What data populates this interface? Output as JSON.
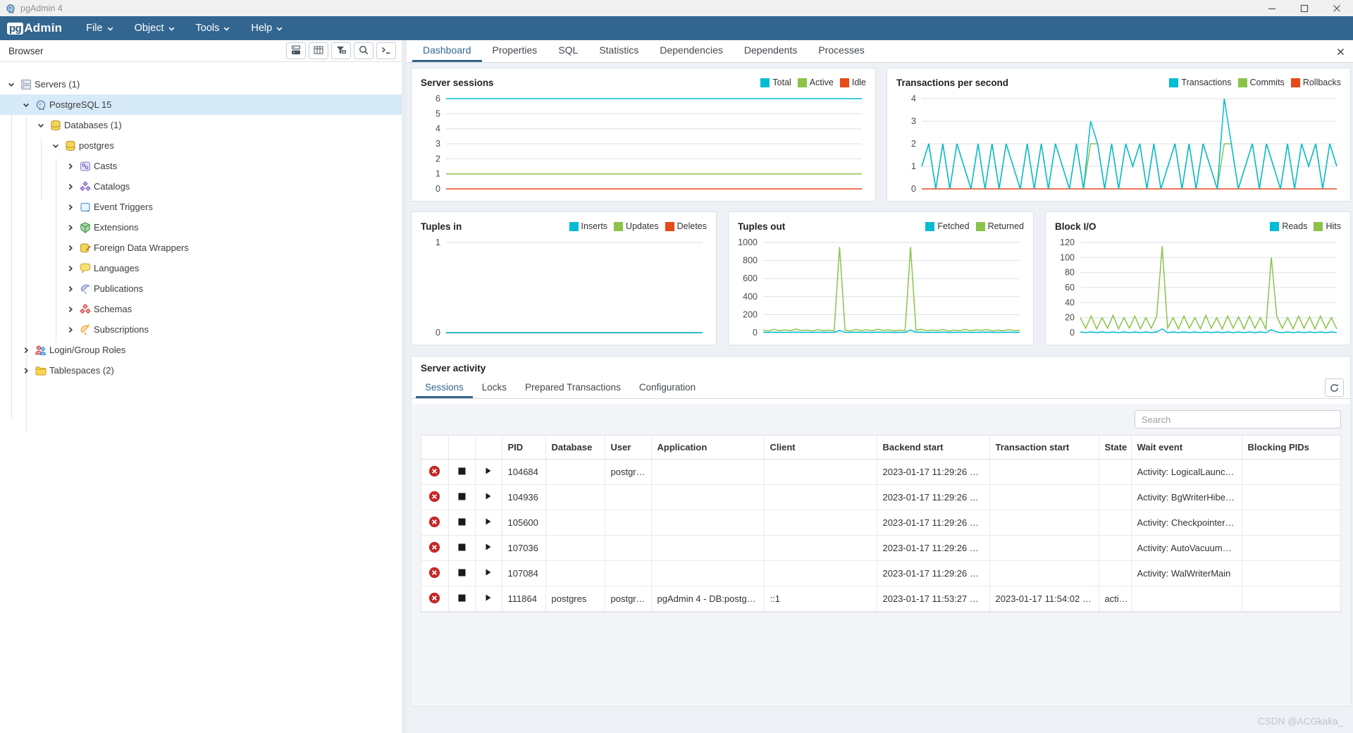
{
  "window": {
    "title": "pgAdmin 4",
    "controls": [
      "minimize-icon",
      "maximize-icon",
      "close-icon"
    ]
  },
  "menubar": {
    "logo_pg": "pg",
    "logo_admin": "Admin",
    "items": [
      {
        "label": "File"
      },
      {
        "label": "Object"
      },
      {
        "label": "Tools"
      },
      {
        "label": "Help"
      }
    ]
  },
  "browser": {
    "title": "Browser",
    "toolbar": [
      "object-explorer-icon",
      "grid-icon",
      "filter-icon",
      "search-icon",
      "console-icon"
    ],
    "tree": [
      {
        "label": "Servers (1)",
        "depth": 0,
        "state": "expanded",
        "icon": "servers-icon",
        "selected": false
      },
      {
        "label": "PostgreSQL 15",
        "depth": 1,
        "state": "expanded",
        "icon": "postgresql-icon",
        "selected": true
      },
      {
        "label": "Databases (1)",
        "depth": 2,
        "state": "expanded",
        "icon": "databases-icon",
        "selected": false
      },
      {
        "label": "postgres",
        "depth": 3,
        "state": "expanded",
        "icon": "database-icon",
        "selected": false
      },
      {
        "label": "Casts",
        "depth": 4,
        "state": "collapsed",
        "icon": "casts-icon",
        "selected": false
      },
      {
        "label": "Catalogs",
        "depth": 4,
        "state": "collapsed",
        "icon": "catalogs-icon",
        "selected": false
      },
      {
        "label": "Event Triggers",
        "depth": 4,
        "state": "collapsed",
        "icon": "event-triggers-icon",
        "selected": false
      },
      {
        "label": "Extensions",
        "depth": 4,
        "state": "collapsed",
        "icon": "extensions-icon",
        "selected": false
      },
      {
        "label": "Foreign Data Wrappers",
        "depth": 4,
        "state": "collapsed",
        "icon": "fdw-icon",
        "selected": false
      },
      {
        "label": "Languages",
        "depth": 4,
        "state": "collapsed",
        "icon": "languages-icon",
        "selected": false
      },
      {
        "label": "Publications",
        "depth": 4,
        "state": "collapsed",
        "icon": "publications-icon",
        "selected": false
      },
      {
        "label": "Schemas",
        "depth": 4,
        "state": "collapsed",
        "icon": "schemas-icon",
        "selected": false
      },
      {
        "label": "Subscriptions",
        "depth": 4,
        "state": "collapsed",
        "icon": "subscriptions-icon",
        "selected": false
      },
      {
        "label": "Login/Group Roles",
        "depth": 1,
        "state": "collapsed",
        "icon": "roles-icon",
        "selected": false
      },
      {
        "label": "Tablespaces (2)",
        "depth": 1,
        "state": "collapsed",
        "icon": "tablespaces-icon",
        "selected": false
      }
    ]
  },
  "tabs": {
    "items": [
      "Dashboard",
      "Properties",
      "SQL",
      "Statistics",
      "Dependencies",
      "Dependents",
      "Processes"
    ],
    "active": "Dashboard"
  },
  "colors": {
    "accent": "#326690",
    "teal": "#00BCD4",
    "green": "#8BC34A",
    "red": "#E64A19",
    "selection": "#d6eaf8"
  },
  "chart_data": [
    {
      "id": "server-sessions",
      "type": "line",
      "title": "Server sessions",
      "legend": [
        {
          "label": "Total",
          "color": "#00BCD4"
        },
        {
          "label": "Active",
          "color": "#8BC34A"
        },
        {
          "label": "Idle",
          "color": "#E64A19"
        }
      ],
      "yticks": [
        6,
        5,
        4,
        3,
        2,
        1,
        0
      ],
      "ymax": 6,
      "ylim": [
        0,
        6
      ],
      "grid": true,
      "legend_position": "top-right",
      "series": [
        {
          "name": "Idle",
          "color": "#E64A19",
          "values": [
            0,
            0
          ]
        },
        {
          "name": "Active",
          "color": "#8BC34A",
          "values": [
            1,
            1
          ]
        },
        {
          "name": "Total",
          "color": "#00BCD4",
          "values": [
            6,
            6
          ]
        }
      ]
    },
    {
      "id": "tps",
      "type": "line",
      "title": "Transactions per second",
      "legend": [
        {
          "label": "Transactions",
          "color": "#00BCD4"
        },
        {
          "label": "Commits",
          "color": "#8BC34A"
        },
        {
          "label": "Rollbacks",
          "color": "#E64A19"
        }
      ],
      "yticks": [
        4,
        3,
        2,
        1,
        0
      ],
      "ymax": 4,
      "ylim": [
        0,
        4
      ],
      "grid": true,
      "legend_position": "top-right",
      "series": [
        {
          "name": "Rollbacks",
          "color": "#E64A19",
          "values": [
            0,
            0
          ]
        },
        {
          "name": "Commits",
          "color": "#8BC34A",
          "values": [
            1,
            2,
            0,
            2,
            0,
            2,
            1,
            0,
            2,
            0,
            2,
            0,
            2,
            1,
            0,
            2,
            0,
            2,
            0,
            2,
            1,
            0,
            2,
            0,
            2,
            2,
            0,
            2,
            0,
            2,
            1,
            2,
            0,
            2,
            0,
            1,
            2,
            0,
            2,
            0,
            2,
            1,
            0,
            2,
            2,
            0,
            1,
            2,
            0,
            2,
            1,
            0,
            2,
            0,
            2,
            1,
            2,
            0,
            2,
            1
          ]
        },
        {
          "name": "Transactions",
          "color": "#00BCD4",
          "values": [
            1,
            2,
            0,
            2,
            0,
            2,
            1,
            0,
            2,
            0,
            2,
            0,
            2,
            1,
            0,
            2,
            0,
            2,
            0,
            2,
            1,
            0,
            2,
            0,
            3,
            2,
            0,
            2,
            0,
            2,
            1,
            2,
            0,
            2,
            0,
            1,
            2,
            0,
            2,
            0,
            2,
            1,
            0,
            4,
            2,
            0,
            1,
            2,
            0,
            2,
            1,
            0,
            2,
            0,
            2,
            1,
            2,
            0,
            2,
            1
          ]
        }
      ]
    },
    {
      "id": "tuples-in",
      "type": "line",
      "title": "Tuples in",
      "legend": [
        {
          "label": "Inserts",
          "color": "#00BCD4"
        },
        {
          "label": "Updates",
          "color": "#8BC34A"
        },
        {
          "label": "Deletes",
          "color": "#E64A19"
        }
      ],
      "yticks": [
        1,
        0
      ],
      "ymax": 1,
      "ylim": [
        0,
        1
      ],
      "grid": true,
      "legend_position": "top-right",
      "series": [
        {
          "name": "Deletes",
          "color": "#E64A19",
          "values": [
            0,
            0
          ]
        },
        {
          "name": "Updates",
          "color": "#8BC34A",
          "values": [
            0,
            0
          ]
        },
        {
          "name": "Inserts",
          "color": "#00BCD4",
          "values": [
            0,
            0
          ]
        }
      ]
    },
    {
      "id": "tuples-out",
      "type": "line",
      "title": "Tuples out",
      "legend": [
        {
          "label": "Fetched",
          "color": "#00BCD4"
        },
        {
          "label": "Returned",
          "color": "#8BC34A"
        }
      ],
      "yticks": [
        1000,
        800,
        600,
        400,
        200,
        0
      ],
      "ymax": 1000,
      "ylim": [
        0,
        1000
      ],
      "grid": true,
      "legend_position": "top-right",
      "series": [
        {
          "name": "Returned",
          "color": "#8BC34A",
          "values": [
            30,
            18,
            38,
            22,
            32,
            20,
            40,
            24,
            30,
            18,
            36,
            22,
            30,
            20,
            950,
            28,
            18,
            36,
            22,
            32,
            20,
            38,
            24,
            32,
            18,
            30,
            22,
            950,
            26,
            38,
            20,
            30,
            24,
            36,
            18,
            30,
            22,
            38,
            20,
            32,
            24,
            36,
            18,
            30,
            22,
            34,
            20,
            28
          ]
        },
        {
          "name": "Fetched",
          "color": "#00BCD4",
          "values": [
            5,
            3,
            6,
            4,
            5,
            3,
            7,
            4,
            5,
            3,
            6,
            4,
            5,
            3,
            25,
            5,
            3,
            6,
            4,
            5,
            3,
            7,
            4,
            6,
            3,
            5,
            4,
            30,
            5,
            6,
            3,
            5,
            4,
            7,
            3,
            5,
            4,
            6,
            3,
            5,
            4,
            7,
            3,
            5,
            4,
            6,
            3,
            5
          ]
        }
      ]
    },
    {
      "id": "block-io",
      "type": "line",
      "title": "Block I/O",
      "legend": [
        {
          "label": "Reads",
          "color": "#00BCD4"
        },
        {
          "label": "Hits",
          "color": "#8BC34A"
        }
      ],
      "yticks": [
        120,
        100,
        80,
        60,
        40,
        20,
        0
      ],
      "ymax": 120,
      "ylim": [
        0,
        120
      ],
      "grid": true,
      "legend_position": "top-right",
      "series": [
        {
          "name": "Hits",
          "color": "#8BC34A",
          "values": [
            20,
            6,
            22,
            5,
            20,
            6,
            23,
            5,
            20,
            6,
            22,
            5,
            20,
            6,
            22,
            115,
            6,
            20,
            5,
            22,
            6,
            20,
            5,
            23,
            6,
            20,
            5,
            22,
            6,
            21,
            5,
            22,
            6,
            20,
            5,
            100,
            22,
            6,
            20,
            5,
            22,
            6,
            21,
            5,
            22,
            6,
            20,
            5
          ]
        },
        {
          "name": "Reads",
          "color": "#00BCD4",
          "values": [
            1,
            0,
            1,
            0,
            1,
            0,
            1,
            0,
            1,
            0,
            1,
            0,
            1,
            0,
            1,
            5,
            0,
            1,
            0,
            1,
            0,
            1,
            0,
            1,
            0,
            1,
            0,
            1,
            0,
            1,
            0,
            1,
            0,
            1,
            0,
            4,
            1,
            0,
            1,
            0,
            1,
            0,
            1,
            0,
            1,
            0,
            1,
            0
          ]
        }
      ]
    }
  ],
  "server_activity": {
    "title": "Server activity",
    "tabs": [
      "Sessions",
      "Locks",
      "Prepared Transactions",
      "Configuration"
    ],
    "active_tab": "Sessions",
    "refresh_icon": "refresh-icon",
    "search_placeholder": "Search",
    "table": {
      "columns": [
        "",
        "",
        "",
        "PID",
        "Database",
        "User",
        "Application",
        "Client",
        "Backend start",
        "Transaction start",
        "State",
        "Wait event",
        "Blocking PIDs"
      ],
      "row_icons": [
        "terminate-icon",
        "stop-icon",
        "details-icon"
      ],
      "rows": [
        [
          "104684",
          "",
          "postgr…",
          "",
          "",
          "2023-01-17 11:29:26 …",
          "",
          "",
          "Activity: LogicalLaunc…",
          ""
        ],
        [
          "104936",
          "",
          "",
          "",
          "",
          "2023-01-17 11:29:26 …",
          "",
          "",
          "Activity: BgWriterHibe…",
          ""
        ],
        [
          "105600",
          "",
          "",
          "",
          "",
          "2023-01-17 11:29:26 …",
          "",
          "",
          "Activity: Checkpointer…",
          ""
        ],
        [
          "107036",
          "",
          "",
          "",
          "",
          "2023-01-17 11:29:26 …",
          "",
          "",
          "Activity: AutoVacuum…",
          ""
        ],
        [
          "107084",
          "",
          "",
          "",
          "",
          "2023-01-17 11:29:26 …",
          "",
          "",
          "Activity: WalWriterMain",
          ""
        ],
        [
          "111864",
          "postgres",
          "postgr…",
          "pgAdmin 4 - DB:postg…",
          "::1",
          "2023-01-17 11:53:27 …",
          "2023-01-17 11:54:02 …",
          "acti…",
          "",
          ""
        ]
      ]
    }
  },
  "watermark": "CSDN @ACGkaka_"
}
